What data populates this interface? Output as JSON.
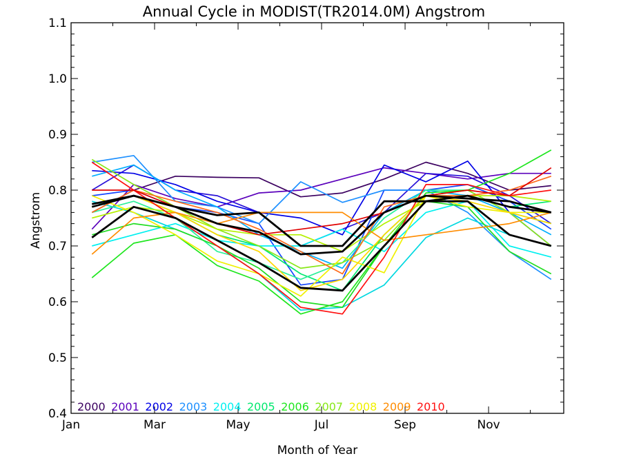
{
  "chart_data": {
    "type": "line",
    "title": "Annual Cycle in MODIST(TR2014.0M) Angstrom",
    "xlabel": "Month of Year",
    "ylabel": "Angstrom",
    "xlim": [
      1,
      12.8
    ],
    "ylim": [
      0.4,
      1.1
    ],
    "x_ticks": [
      1,
      3,
      5,
      7,
      9,
      11
    ],
    "x_tick_labels": [
      "Jan",
      "Mar",
      "May",
      "Jul",
      "Sep",
      "Nov"
    ],
    "y_ticks": [
      0.4,
      0.5,
      0.6,
      0.7,
      0.8,
      0.9,
      1.0,
      1.1
    ],
    "y_tick_labels": [
      "0.4",
      "0.5",
      "0.6",
      "0.7",
      "0.8",
      "0.9",
      "1.0",
      "1.1"
    ],
    "x": [
      1.5,
      2.5,
      3.5,
      4.5,
      5.5,
      6.5,
      7.5,
      8.5,
      9.5,
      10.5,
      11.5,
      12.5
    ],
    "legend_position": "bottom-left inside",
    "grid": false,
    "series": [
      {
        "name": "2000",
        "color": "#3b0060",
        "values": [
          0.76,
          0.8,
          0.825,
          0.823,
          0.822,
          0.788,
          0.795,
          0.82,
          0.85,
          0.83,
          0.8,
          0.808
        ]
      },
      {
        "name": "2001",
        "color": "#5a00bb",
        "values": [
          0.73,
          0.81,
          0.785,
          0.77,
          0.795,
          0.8,
          0.82,
          0.84,
          0.83,
          0.82,
          0.83,
          0.83
        ]
      },
      {
        "name": "2001",
        "color": "#2a12d8",
        "values": [
          0.8,
          0.845,
          0.8,
          0.79,
          0.76,
          0.7,
          0.73,
          0.76,
          0.83,
          0.825,
          0.79,
          0.74
        ]
      },
      {
        "name": "2002",
        "color": "#0000e6",
        "values": [
          0.835,
          0.83,
          0.81,
          0.78,
          0.76,
          0.75,
          0.72,
          0.845,
          0.815,
          0.852,
          0.76,
          0.7
        ]
      },
      {
        "name": "2002",
        "color": "#1446ff",
        "values": [
          0.79,
          0.8,
          0.77,
          0.76,
          0.74,
          0.63,
          0.64,
          0.8,
          0.8,
          0.81,
          0.78,
          0.73
        ]
      },
      {
        "name": "2003",
        "color": "#1e90ff",
        "values": [
          0.85,
          0.862,
          0.78,
          0.77,
          0.74,
          0.815,
          0.778,
          0.8,
          0.8,
          0.76,
          0.69,
          0.64
        ]
      },
      {
        "name": "2003",
        "color": "#00aeff",
        "values": [
          0.825,
          0.845,
          0.8,
          0.77,
          0.72,
          0.69,
          0.66,
          0.76,
          0.8,
          0.79,
          0.76,
          0.72
        ]
      },
      {
        "name": "2004",
        "color": "#00f0f0",
        "values": [
          0.7,
          0.72,
          0.74,
          0.71,
          0.7,
          0.7,
          0.73,
          0.69,
          0.76,
          0.78,
          0.7,
          0.68
        ]
      },
      {
        "name": "2004",
        "color": "#00d8e0",
        "values": [
          0.78,
          0.76,
          0.73,
          0.7,
          0.65,
          0.585,
          0.59,
          0.63,
          0.715,
          0.75,
          0.72,
          0.7
        ]
      },
      {
        "name": "2005",
        "color": "#00e86e",
        "values": [
          0.77,
          0.79,
          0.76,
          0.72,
          0.7,
          0.65,
          0.62,
          0.72,
          0.79,
          0.79,
          0.77,
          0.78
        ]
      },
      {
        "name": "2005",
        "color": "#2cf09a",
        "values": [
          0.76,
          0.78,
          0.75,
          0.69,
          0.67,
          0.64,
          0.67,
          0.75,
          0.8,
          0.8,
          0.76,
          0.74
        ]
      },
      {
        "name": "2006",
        "color": "#1ee61e",
        "values": [
          0.643,
          0.705,
          0.72,
          0.665,
          0.637,
          0.578,
          0.6,
          0.7,
          0.795,
          0.8,
          0.83,
          0.872
        ]
      },
      {
        "name": "2006",
        "color": "#22dd22",
        "values": [
          0.72,
          0.74,
          0.73,
          0.7,
          0.66,
          0.6,
          0.59,
          0.7,
          0.78,
          0.77,
          0.69,
          0.65
        ]
      },
      {
        "name": "2007",
        "color": "#88e818",
        "values": [
          0.855,
          0.81,
          0.77,
          0.73,
          0.7,
          0.66,
          0.67,
          0.71,
          0.79,
          0.8,
          0.76,
          0.7
        ]
      },
      {
        "name": "2007",
        "color": "#b4f000",
        "values": [
          0.75,
          0.77,
          0.76,
          0.73,
          0.72,
          0.72,
          0.69,
          0.74,
          0.78,
          0.79,
          0.79,
          0.78
        ]
      },
      {
        "name": "2008",
        "color": "#f0f000",
        "values": [
          0.79,
          0.76,
          0.72,
          0.673,
          0.65,
          0.61,
          0.68,
          0.652,
          0.79,
          0.77,
          0.76,
          0.76
        ]
      },
      {
        "name": "2008",
        "color": "#ffd700",
        "values": [
          0.77,
          0.79,
          0.76,
          0.72,
          0.69,
          0.62,
          0.64,
          0.72,
          0.79,
          0.78,
          0.76,
          0.74
        ]
      },
      {
        "name": "2009",
        "color": "#ff8c00",
        "values": [
          0.685,
          0.75,
          0.76,
          0.74,
          0.76,
          0.76,
          0.76,
          0.71,
          0.72,
          0.73,
          0.74,
          0.76
        ]
      },
      {
        "name": "2009",
        "color": "#ff6a1a",
        "values": [
          0.76,
          0.8,
          0.78,
          0.76,
          0.73,
          0.69,
          0.65,
          0.77,
          0.79,
          0.79,
          0.8,
          0.825
        ]
      },
      {
        "name": "2010",
        "color": "#ff1010",
        "values": [
          0.85,
          0.8,
          0.75,
          0.7,
          0.65,
          0.59,
          0.578,
          0.68,
          0.81,
          0.81,
          0.79,
          0.8
        ]
      },
      {
        "name": "2010",
        "color": "#e00000",
        "values": [
          0.8,
          0.8,
          0.77,
          0.74,
          0.72,
          0.73,
          0.74,
          0.76,
          0.79,
          0.8,
          0.79,
          0.84
        ]
      },
      {
        "name": "",
        "color": "#000000",
        "width": 2.8,
        "values": [
          0.775,
          0.79,
          0.77,
          0.74,
          0.725,
          0.685,
          0.69,
          0.76,
          0.79,
          0.785,
          0.78,
          0.76
        ]
      },
      {
        "name": "",
        "color": "#000000",
        "width": 2.8,
        "values": [
          0.715,
          0.77,
          0.75,
          0.71,
          0.67,
          0.625,
          0.62,
          0.7,
          0.78,
          0.78,
          0.72,
          0.7
        ]
      },
      {
        "name": "",
        "color": "#000000",
        "width": 2.8,
        "values": [
          0.77,
          0.79,
          0.77,
          0.755,
          0.76,
          0.7,
          0.7,
          0.78,
          0.78,
          0.79,
          0.77,
          0.76
        ]
      }
    ],
    "legend": [
      {
        "label": "2000",
        "color": "#3b0060"
      },
      {
        "label": "2001",
        "color": "#5a00bb"
      },
      {
        "label": "2002",
        "color": "#0000e6"
      },
      {
        "label": "2003",
        "color": "#1e90ff"
      },
      {
        "label": "2004",
        "color": "#00f0f0"
      },
      {
        "label": "2005",
        "color": "#00e86e"
      },
      {
        "label": "2006",
        "color": "#1ee61e"
      },
      {
        "label": "2007",
        "color": "#88e818"
      },
      {
        "label": "2008",
        "color": "#f0f000"
      },
      {
        "label": "2009",
        "color": "#ff8c00"
      },
      {
        "label": "2010",
        "color": "#ff1010"
      }
    ]
  }
}
